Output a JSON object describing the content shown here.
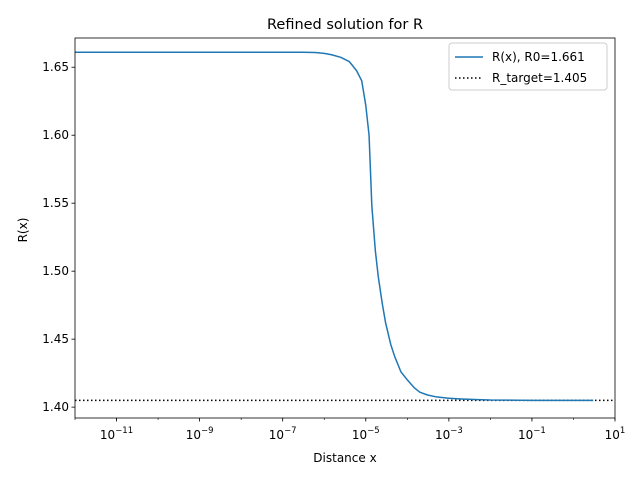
{
  "chart_data": {
    "type": "line",
    "title": "Refined solution for R",
    "xlabel": "Distance x",
    "ylabel": "R(x)",
    "xscale": "log",
    "xlim": [
      1e-12,
      10
    ],
    "ylim": [
      1.392,
      1.6715
    ],
    "x_ticks": [
      {
        "value": 1e-11,
        "base": "10",
        "exp": "−11"
      },
      {
        "value": 1e-09,
        "base": "10",
        "exp": "−9"
      },
      {
        "value": 1e-07,
        "base": "10",
        "exp": "−7"
      },
      {
        "value": 1e-05,
        "base": "10",
        "exp": "−5"
      },
      {
        "value": 0.001,
        "base": "10",
        "exp": "−3"
      },
      {
        "value": 0.1,
        "base": "10",
        "exp": "−1"
      },
      {
        "value": 10,
        "base": "10",
        "exp": "1"
      }
    ],
    "y_ticks": [
      {
        "value": 1.4,
        "label": "1.40"
      },
      {
        "value": 1.45,
        "label": "1.45"
      },
      {
        "value": 1.5,
        "label": "1.50"
      },
      {
        "value": 1.55,
        "label": "1.55"
      },
      {
        "value": 1.6,
        "label": "1.60"
      },
      {
        "value": 1.65,
        "label": "1.65"
      }
    ],
    "series": [
      {
        "name": "R(x), R0=1.661",
        "color": "#1f77b4",
        "style": "solid",
        "x": [
          1e-12,
          1e-11,
          1e-10,
          1e-09,
          1e-08,
          1e-07,
          3e-07,
          6e-07,
          1e-06,
          1.5e-06,
          2.5e-06,
          4e-06,
          6e-06,
          8e-06,
          1e-05,
          1.2e-05,
          1.4e-05,
          1.7e-05,
          2e-05,
          2.5e-05,
          3e-05,
          4e-05,
          5e-05,
          7e-05,
          0.0001,
          0.00015,
          0.0002,
          0.0003,
          0.0005,
          0.001,
          0.002,
          0.005,
          0.01,
          0.1,
          1,
          3
        ],
        "y": [
          1.661,
          1.661,
          1.661,
          1.661,
          1.661,
          1.661,
          1.661,
          1.6608,
          1.6602,
          1.6592,
          1.6573,
          1.6542,
          1.6475,
          1.64,
          1.622,
          1.6,
          1.548,
          1.515,
          1.496,
          1.476,
          1.462,
          1.446,
          1.437,
          1.426,
          1.42,
          1.414,
          1.411,
          1.409,
          1.4075,
          1.4065,
          1.406,
          1.4055,
          1.4052,
          1.405,
          1.405,
          1.405
        ]
      },
      {
        "name": "R_target=1.405",
        "color": "#000000",
        "style": "dotted",
        "hline": 1.405
      }
    ],
    "legend_position": "top-right"
  }
}
